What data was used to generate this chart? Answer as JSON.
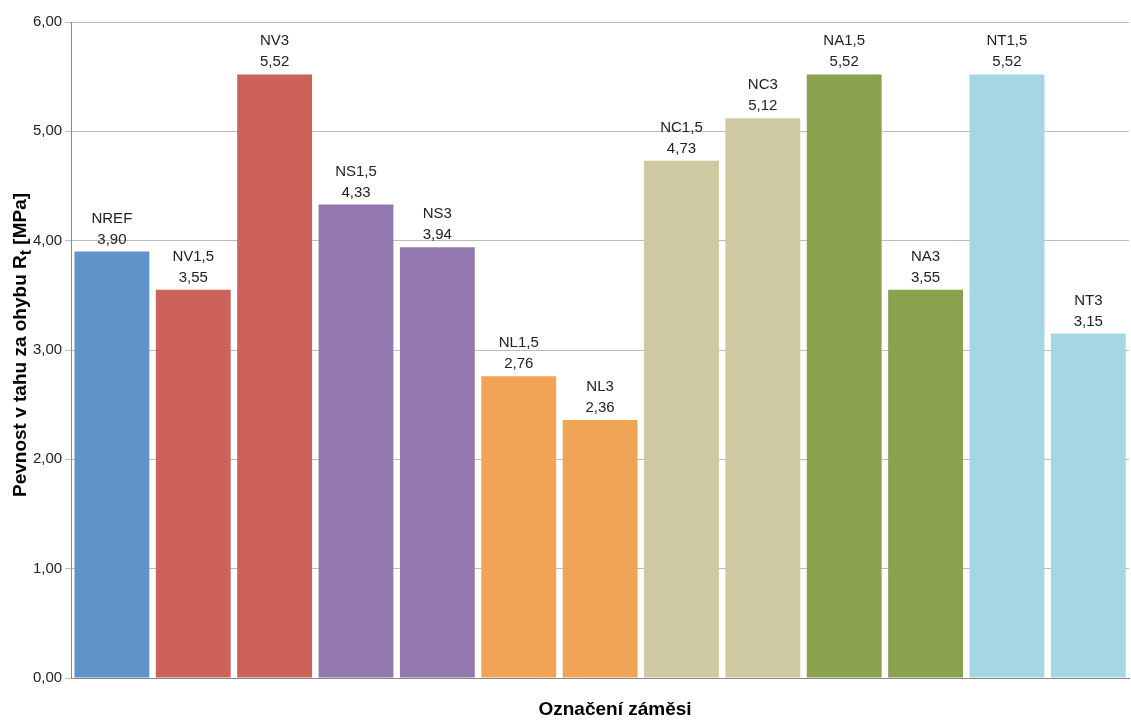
{
  "chart_data": {
    "type": "bar",
    "xlabel": "Označení záměsi",
    "ylabel": "Pevnost v tahu za ohybu R$_{t}$ [MPa]",
    "categories": [
      "NREF",
      "NV1,5",
      "NV3",
      "NS1,5",
      "NS3",
      "NL1,5",
      "NL3",
      "NC1,5",
      "NC3",
      "NA1,5",
      "NA3",
      "NT1,5",
      "NT3"
    ],
    "values": [
      3.9,
      3.55,
      5.52,
      4.33,
      3.94,
      2.76,
      2.36,
      4.73,
      5.12,
      5.52,
      3.55,
      5.52,
      3.15
    ],
    "value_labels": [
      "3,90",
      "3,55",
      "5,52",
      "4,33",
      "3,94",
      "2,76",
      "2,36",
      "4,73",
      "5,12",
      "5,52",
      "3,55",
      "5,52",
      "3,15"
    ],
    "colors": [
      "#5f93c9",
      "#cd625a",
      "#cd625a",
      "#9479b0",
      "#9479b0",
      "#f0a556",
      "#f0a556",
      "#cfc9a2",
      "#cfc9a2",
      "#89a24d",
      "#89a24d",
      "#a5d6e3",
      "#a5d6e3"
    ],
    "ylim": [
      0,
      6
    ],
    "yticks": [
      {
        "value": 0,
        "label": "0,00"
      },
      {
        "value": 1,
        "label": "1,00"
      },
      {
        "value": 2,
        "label": "2,00"
      },
      {
        "value": 3,
        "label": "3,00"
      },
      {
        "value": 4,
        "label": "4,00"
      },
      {
        "value": 5,
        "label": "5,00"
      },
      {
        "value": 6,
        "label": "6,00"
      }
    ],
    "grid": "y",
    "tick_labels": "y",
    "legend": false
  }
}
